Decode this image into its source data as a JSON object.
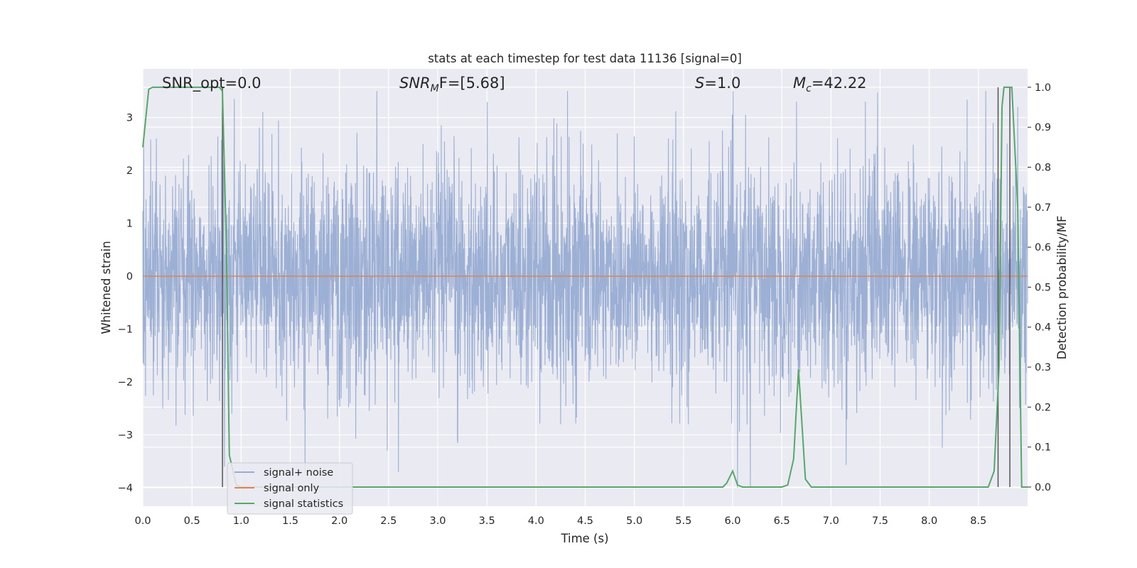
{
  "chart_data": {
    "type": "line",
    "title": "stats at each timestep for test data 11136 [signal=0]",
    "xlabel": "Time (s)",
    "ylabel_left": "Whitened strain",
    "ylabel_right": "Detection probability/MF",
    "xlim": [
      0.0,
      9.0
    ],
    "ylim_left": [
      -4.35,
      3.92
    ],
    "ylim_right": [
      -0.048,
      1.046
    ],
    "x_ticks": [
      "0.0",
      "0.5",
      "1.0",
      "1.5",
      "2.0",
      "2.5",
      "3.0",
      "3.5",
      "4.0",
      "4.5",
      "5.0",
      "5.5",
      "6.0",
      "6.5",
      "7.0",
      "7.5",
      "8.0",
      "8.5"
    ],
    "y_ticks_left": [
      "3",
      "2",
      "1",
      "0",
      "−1",
      "−2",
      "−3",
      "−4"
    ],
    "y_ticks_right": [
      "1.0",
      "0.9",
      "0.8",
      "0.7",
      "0.6",
      "0.5",
      "0.4",
      "0.3",
      "0.2",
      "0.1",
      "0.0"
    ],
    "grid": true,
    "legend_position": "lower-left",
    "annotations": [
      {
        "text": "SNR_opt=0.0",
        "style": "normal"
      },
      {
        "text": "SNR",
        "sub": "M",
        "after": "F=[5.68]",
        "style": "italic"
      },
      {
        "text": "S",
        "after": "=1.0",
        "style": "italic"
      },
      {
        "text": "M",
        "sub": "c",
        "after": "=42.22",
        "style": "italic"
      }
    ],
    "series": [
      {
        "name": "signal+ noise",
        "color": "#98acd2",
        "axis": "left",
        "description": "whitened noise, approx std 1, range about -3.9 to 3.5",
        "peak_spikes": [
          [
            0.83,
            -3.6
          ],
          [
            0.93,
            3.35
          ],
          [
            1.65,
            -3.75
          ],
          [
            2.6,
            -3.7
          ],
          [
            3.2,
            -3.1
          ],
          [
            4.32,
            3.5
          ],
          [
            4.25,
            -2.8
          ],
          [
            5.55,
            -2.8
          ],
          [
            6.05,
            -4.0
          ],
          [
            6.18,
            -4.0
          ],
          [
            6.65,
            3.3
          ],
          [
            7.35,
            3.3
          ],
          [
            8.65,
            2.9
          ],
          [
            2.85,
            2.5
          ],
          [
            8.9,
            3.2
          ]
        ]
      },
      {
        "name": "signal only",
        "color": "#dd8452",
        "axis": "left",
        "x": [
          0.0,
          9.0
        ],
        "y": [
          0.0,
          0.0
        ]
      },
      {
        "name": "signal statistics",
        "color": "#55a868",
        "axis": "right",
        "x": [
          0.0,
          0.06,
          0.1,
          0.2,
          0.3,
          0.5,
          0.7,
          0.78,
          0.81,
          0.85,
          0.88,
          0.95,
          1.0,
          2.0,
          3.0,
          4.0,
          5.0,
          5.9,
          5.94,
          6.0,
          6.05,
          6.1,
          6.5,
          6.56,
          6.62,
          6.67,
          6.74,
          6.8,
          7.0,
          8.0,
          8.6,
          8.66,
          8.71,
          8.74,
          8.76,
          8.8,
          8.84,
          8.9,
          8.94,
          8.96,
          9.0
        ],
        "y": [
          0.85,
          0.995,
          1.0,
          1.0,
          1.0,
          1.0,
          1.0,
          1.0,
          0.99,
          0.6,
          0.08,
          0.005,
          0.0,
          0.0,
          0.0,
          0.0,
          0.0,
          0.0,
          0.01,
          0.04,
          0.005,
          0.0,
          0.0,
          0.005,
          0.07,
          0.295,
          0.02,
          0.0,
          0.0,
          0.0,
          0.0,
          0.04,
          0.3,
          0.95,
          1.0,
          1.0,
          1.0,
          0.7,
          0.0,
          0.0,
          0.0
        ]
      }
    ],
    "vertical_lines": [
      0.81,
      8.7,
      8.82
    ]
  }
}
